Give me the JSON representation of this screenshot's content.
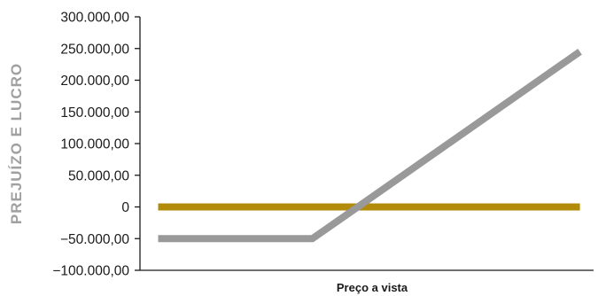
{
  "chart_data": {
    "type": "line",
    "title": "",
    "xlabel": "Preço a vista",
    "ylabel": "PREJUÍZO E LUCRO",
    "ylim": [
      -100000,
      300000
    ],
    "yticks": [
      {
        "value": 300000,
        "label": "300.000,00"
      },
      {
        "value": 250000,
        "label": "250.000,00"
      },
      {
        "value": 200000,
        "label": "200.000,00"
      },
      {
        "value": 150000,
        "label": "150.000,00"
      },
      {
        "value": 100000,
        "label": "100.000,00"
      },
      {
        "value": 50000,
        "label": "50.000,00"
      },
      {
        "value": 0,
        "label": "0"
      },
      {
        "value": -50000,
        "label": "−50.000,00"
      },
      {
        "value": -100000,
        "label": "−100.000,00"
      }
    ],
    "xlim": [
      0,
      100
    ],
    "series": [
      {
        "color": "#b38b0b",
        "points": [
          [
            4,
            0
          ],
          [
            97,
            0
          ]
        ]
      },
      {
        "color": "#999999",
        "points": [
          [
            4,
            -50000
          ],
          [
            38,
            -50000
          ],
          [
            97,
            245000
          ]
        ]
      }
    ],
    "grid": false,
    "legend": "none"
  }
}
